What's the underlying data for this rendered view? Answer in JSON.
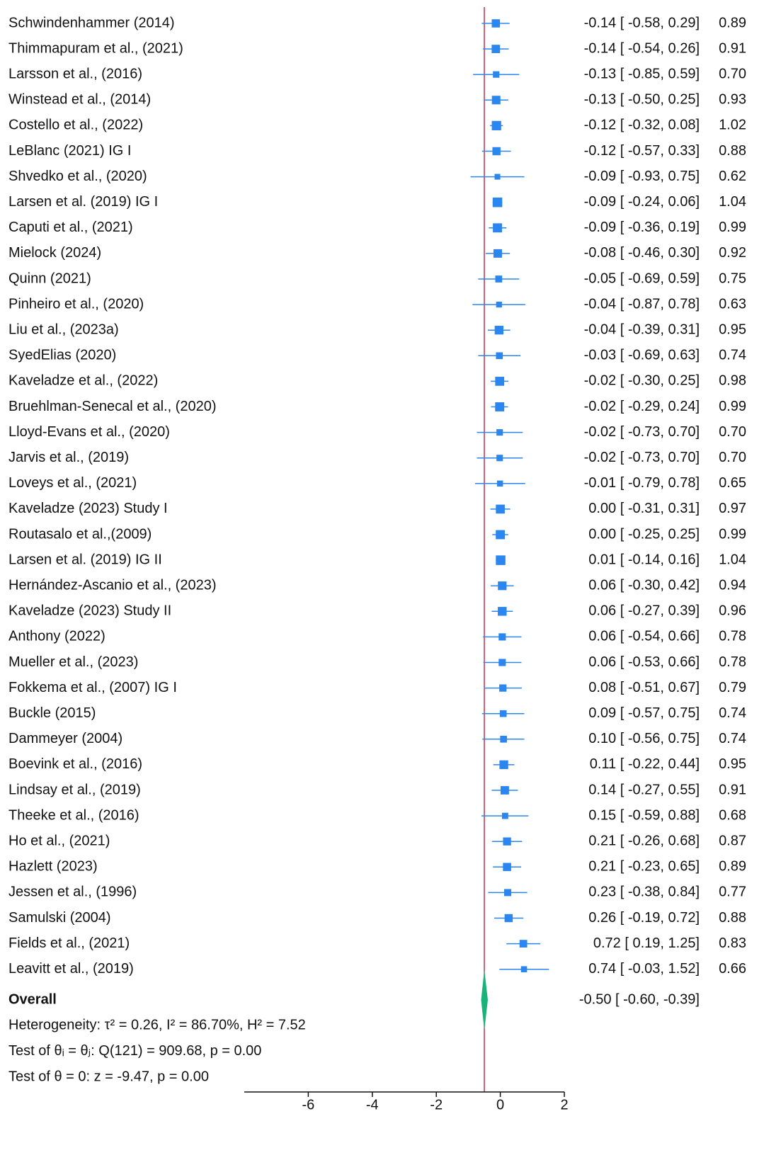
{
  "chart_data": {
    "type": "forest",
    "names": [
      "Schwindenhammer (2014)",
      "Thimmapuram et al., (2021)",
      "Larsson et al., (2016)",
      "Winstead et al., (2014)",
      "Costello et al.,  (2022)",
      "LeBlanc (2021) IG I",
      "Shvedko et al., (2020)",
      "Larsen et al. (2019) IG I",
      "Caputi et al., (2021)",
      "Mielock (2024)",
      "Quinn (2021)",
      "Pinheiro et al., (2020)",
      "Liu et al., (2023a)",
      "SyedElias (2020)",
      "Kaveladze et al., (2022)",
      "Bruehlman-Senecal et al., (2020)",
      "Lloyd-Evans et al., (2020)",
      "Jarvis et al., (2019)",
      "Loveys et al., (2021)",
      "Kaveladze (2023) Study I",
      "Routasalo et al.,(2009)",
      "Larsen et al. (2019) IG II",
      "Hernández-Ascanio et al., (2023)",
      "Kaveladze (2023) Study II",
      "Anthony (2022)",
      "Mueller et al., (2023)",
      "Fokkema et al., (2007) IG I",
      "Buckle (2015)",
      "Dammeyer (2004)",
      "Boevink et al., (2016)",
      "Lindsay et al., (2019)",
      "Theeke et al., (2016)",
      "Ho et al.,  (2021)",
      "Hazlett (2023)",
      "Jessen et al., (1996)",
      "Samulski (2004)",
      "Fields et al., (2021)",
      "Leavitt et al., (2019)"
    ],
    "effects": [
      -0.14,
      -0.14,
      -0.13,
      -0.13,
      -0.12,
      -0.12,
      -0.09,
      -0.09,
      -0.09,
      -0.08,
      -0.05,
      -0.04,
      -0.04,
      -0.03,
      -0.02,
      -0.02,
      -0.02,
      -0.02,
      -0.01,
      0.0,
      0.0,
      0.01,
      0.06,
      0.06,
      0.06,
      0.06,
      0.08,
      0.09,
      0.1,
      0.11,
      0.14,
      0.15,
      0.21,
      0.21,
      0.23,
      0.26,
      0.72,
      0.74
    ],
    "lower": [
      -0.58,
      -0.54,
      -0.85,
      -0.5,
      -0.32,
      -0.57,
      -0.93,
      -0.24,
      -0.36,
      -0.46,
      -0.69,
      -0.87,
      -0.39,
      -0.69,
      -0.3,
      -0.29,
      -0.73,
      -0.73,
      -0.79,
      -0.31,
      -0.25,
      -0.14,
      -0.3,
      -0.27,
      -0.54,
      -0.53,
      -0.51,
      -0.57,
      -0.56,
      -0.22,
      -0.27,
      -0.59,
      -0.26,
      -0.23,
      -0.38,
      -0.19,
      0.19,
      -0.03
    ],
    "upper": [
      0.29,
      0.26,
      0.59,
      0.25,
      0.08,
      0.33,
      0.75,
      0.06,
      0.19,
      0.3,
      0.59,
      0.78,
      0.31,
      0.63,
      0.25,
      0.24,
      0.7,
      0.7,
      0.78,
      0.31,
      0.25,
      0.16,
      0.42,
      0.39,
      0.66,
      0.66,
      0.67,
      0.75,
      0.75,
      0.44,
      0.55,
      0.88,
      0.68,
      0.65,
      0.84,
      0.72,
      1.25,
      1.52
    ],
    "weights": [
      0.89,
      0.91,
      0.7,
      0.93,
      1.02,
      0.88,
      0.62,
      1.04,
      0.99,
      0.92,
      0.75,
      0.63,
      0.95,
      0.74,
      0.98,
      0.99,
      0.7,
      0.7,
      0.65,
      0.97,
      0.99,
      1.04,
      0.94,
      0.96,
      0.78,
      0.78,
      0.79,
      0.74,
      0.74,
      0.95,
      0.91,
      0.68,
      0.87,
      0.89,
      0.77,
      0.88,
      0.83,
      0.66
    ],
    "ci_labels": [
      "-0.14 [ -0.58,  0.29]",
      "-0.14 [ -0.54,  0.26]",
      "-0.13 [ -0.85,  0.59]",
      "-0.13 [ -0.50,  0.25]",
      "-0.12 [ -0.32,  0.08]",
      "-0.12 [ -0.57,  0.33]",
      "-0.09 [ -0.93,  0.75]",
      "-0.09 [ -0.24,  0.06]",
      "-0.09 [ -0.36,  0.19]",
      "-0.08 [ -0.46,  0.30]",
      "-0.05 [ -0.69,  0.59]",
      "-0.04 [ -0.87,  0.78]",
      "-0.04 [ -0.39,  0.31]",
      "-0.03 [ -0.69,  0.63]",
      "-0.02 [ -0.30,  0.25]",
      "-0.02 [ -0.29,  0.24]",
      "-0.02 [ -0.73,  0.70]",
      "-0.02 [ -0.73,  0.70]",
      "-0.01 [ -0.79,  0.78]",
      "0.00 [ -0.31,  0.31]",
      "0.00 [ -0.25,  0.25]",
      "0.01 [ -0.14,  0.16]",
      "0.06 [ -0.30,  0.42]",
      "0.06 [ -0.27,  0.39]",
      "0.06 [ -0.54,  0.66]",
      "0.06 [ -0.53,  0.66]",
      "0.08 [ -0.51,  0.67]",
      "0.09 [ -0.57,  0.75]",
      "0.10 [ -0.56,  0.75]",
      "0.11 [ -0.22,  0.44]",
      "0.14 [ -0.27,  0.55]",
      "0.15 [ -0.59,  0.88]",
      "0.21 [ -0.26,  0.68]",
      "0.21 [ -0.23,  0.65]",
      "0.23 [ -0.38,  0.84]",
      "0.26 [ -0.19,  0.72]",
      "0.72 [  0.19,  1.25]",
      "0.74 [ -0.03,  1.52]"
    ],
    "weight_labels": [
      "0.89",
      "0.91",
      "0.70",
      "0.93",
      "1.02",
      "0.88",
      "0.62",
      "1.04",
      "0.99",
      "0.92",
      "0.75",
      "0.63",
      "0.95",
      "0.74",
      "0.98",
      "0.99",
      "0.70",
      "0.70",
      "0.65",
      "0.97",
      "0.99",
      "1.04",
      "0.94",
      "0.96",
      "0.78",
      "0.78",
      "0.79",
      "0.74",
      "0.74",
      "0.95",
      "0.91",
      "0.68",
      "0.87",
      "0.89",
      "0.77",
      "0.88",
      "0.83",
      "0.66"
    ],
    "overall": {
      "name": "Overall",
      "effect": -0.5,
      "lower": -0.6,
      "upper": -0.39,
      "label": "-0.50 [ -0.60, -0.39]"
    },
    "notes": [
      "Heterogeneity: τ² = 0.26, I² = 86.70%, H² = 7.52",
      "Test of θᵢ = θⱼ: Q(121) = 909.68, p = 0.00",
      "Test of θ = 0: z = -9.47, p = 0.00"
    ],
    "xlim": [
      -8,
      2
    ],
    "xticks": [
      -6,
      -4,
      -2,
      0,
      2
    ],
    "marker_color": "#2b86f0",
    "diamond_color": "#19b37a",
    "line_color": "#c2304f"
  }
}
